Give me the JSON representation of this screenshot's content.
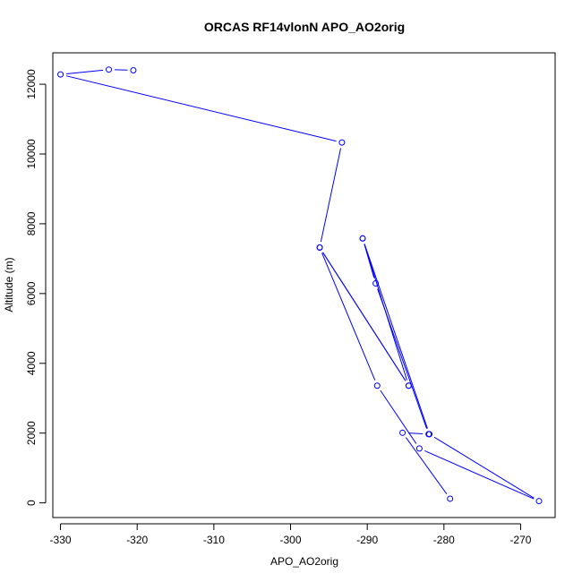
{
  "chart_data": {
    "type": "line",
    "title": "ORCAS RF14vlonN APO_AO2orig",
    "xlabel": "APO_AO2orig",
    "ylabel": "Altitude (m)",
    "xlim": [
      -331,
      -265.5
    ],
    "ylim": [
      -420,
      12900
    ],
    "xticks": [
      -330,
      -320,
      -310,
      -300,
      -290,
      -280,
      -270
    ],
    "yticks": [
      0,
      2000,
      4000,
      6000,
      8000,
      10000,
      12000
    ],
    "grid": false,
    "legend": "none",
    "marker": "open-circle",
    "color": "#0000ff",
    "series": [
      {
        "x": [
          -320.5,
          -323.7,
          -330.0,
          -293.3,
          -296.2,
          -288.7,
          -283.2,
          -267.6,
          -281.9,
          -290.6,
          -284.6,
          -296.2
        ],
        "y": [
          12400,
          12420,
          12280,
          10330,
          7320,
          3360,
          1560,
          50,
          1970,
          7580,
          3360,
          7320
        ]
      },
      {
        "x": [
          -296.2,
          -284.6
        ],
        "y": [
          7320,
          3360
        ]
      },
      {
        "x": [
          -290.6,
          -288.9,
          -282.0,
          -285.4,
          -279.2
        ],
        "y": [
          7580,
          6290,
          1970,
          2010,
          120
        ]
      }
    ]
  }
}
